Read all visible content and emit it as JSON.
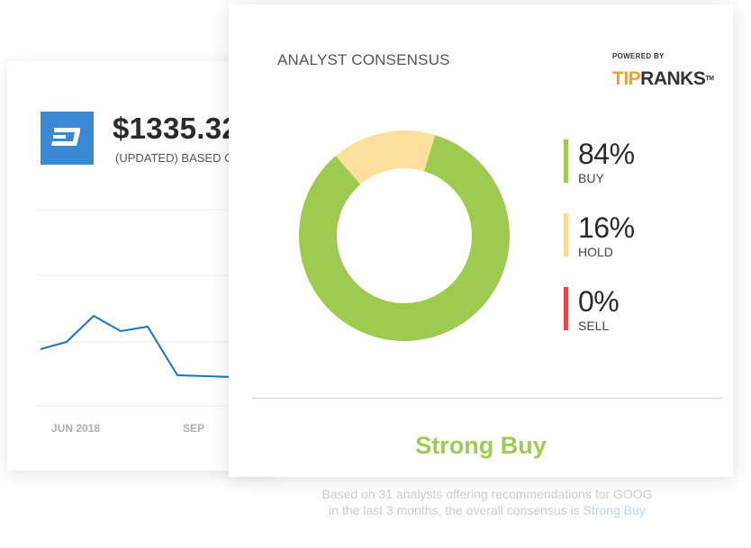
{
  "price_card": {
    "price": "$1335.32",
    "subtitle": "(UPDATED) BASED O",
    "x_ticks": [
      "JUN 2018",
      "SEP"
    ],
    "line_color": "#1a73c4",
    "logo_color": "#3b89d4",
    "logo_icon": "dash-logo-icon"
  },
  "consensus": {
    "title": "ANALYST CONSENSUS",
    "powered_by": "POWERED BY",
    "brand_tip": "TIP",
    "brand_ranks": "RANKS",
    "brand_tm": "TM",
    "stats": [
      {
        "pct": "84%",
        "label": "BUY",
        "color": "#9ecb4f"
      },
      {
        "pct": "16%",
        "label": "HOLD",
        "color": "#fcd98e"
      },
      {
        "pct": "0%",
        "label": "SELL",
        "color": "#e34a4a"
      }
    ],
    "verdict": "Strong Buy",
    "verdict_color": "#a0cb52",
    "caption_line1": "Based on 31 analysts offering recommendations for GOOG",
    "caption_line2_prefix": "in the last 3 months, the overall consensus is ",
    "caption_line2_highlight": "Strong Buy"
  },
  "chart_data": {
    "type": "pie",
    "categories": [
      "BUY",
      "HOLD",
      "SELL"
    ],
    "values": [
      84,
      16,
      0
    ],
    "colors": [
      "#9ecb4f",
      "#fce09c",
      "#e34a4a"
    ]
  }
}
